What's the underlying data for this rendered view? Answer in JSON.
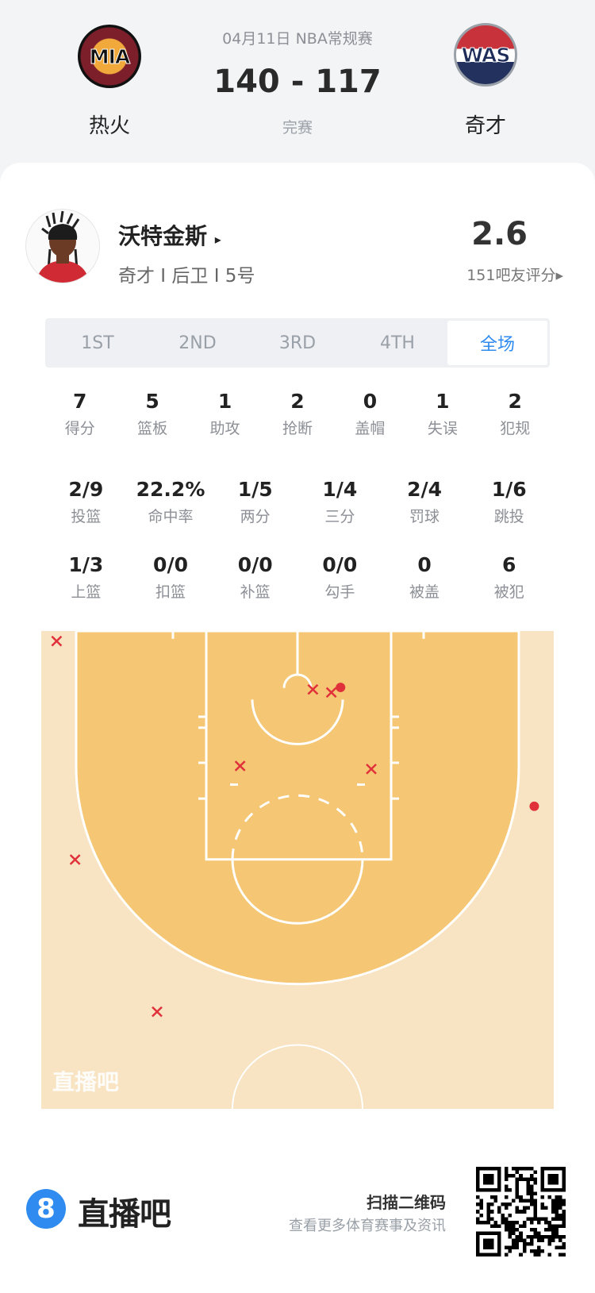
{
  "match": {
    "date_league": "04月11日 NBA常规赛",
    "score": "140 - 117",
    "status": "完赛",
    "home": {
      "abbr": "MIA",
      "name": "热火"
    },
    "away": {
      "abbr": "WAS",
      "name": "奇才"
    }
  },
  "player": {
    "name": "沃特金斯",
    "name_arrow": "▸",
    "info": "奇才 I 后卫 I 5号",
    "rating": "2.6",
    "rating_label": "151吧友评分▸"
  },
  "tabs": [
    {
      "label": "1ST",
      "active": false
    },
    {
      "label": "2ND",
      "active": false
    },
    {
      "label": "3RD",
      "active": false
    },
    {
      "label": "4TH",
      "active": false
    },
    {
      "label": "全场",
      "active": true
    }
  ],
  "stats_main": [
    {
      "value": "7",
      "label": "得分"
    },
    {
      "value": "5",
      "label": "篮板"
    },
    {
      "value": "1",
      "label": "助攻"
    },
    {
      "value": "2",
      "label": "抢断"
    },
    {
      "value": "0",
      "label": "盖帽"
    },
    {
      "value": "1",
      "label": "失误"
    },
    {
      "value": "2",
      "label": "犯规"
    }
  ],
  "stats_shooting": [
    {
      "value": "2/9",
      "label": "投篮"
    },
    {
      "value": "22.2%",
      "label": "命中率"
    },
    {
      "value": "1/5",
      "label": "两分"
    },
    {
      "value": "1/4",
      "label": "三分"
    },
    {
      "value": "2/4",
      "label": "罚球"
    },
    {
      "value": "1/6",
      "label": "跳投"
    }
  ],
  "stats_detail": [
    {
      "value": "1/3",
      "label": "上篮"
    },
    {
      "value": "0/0",
      "label": "扣篮"
    },
    {
      "value": "0/0",
      "label": "补篮"
    },
    {
      "value": "0/0",
      "label": "勾手"
    },
    {
      "value": "0",
      "label": "被盖"
    },
    {
      "value": "6",
      "label": "被犯"
    }
  ],
  "shot_chart": {
    "watermark": "直播吧",
    "units": "feet (x from basket center, y from baseline)",
    "colors": {
      "inner": "#f5c673",
      "outer": "#f8e3c2",
      "shot": "#e0313b",
      "accent": "#2f8bf0"
    },
    "shots": [
      {
        "x": -23.5,
        "y": 1.0,
        "made": false
      },
      {
        "x": 1.5,
        "y": 5.8,
        "made": false
      },
      {
        "x": 3.3,
        "y": 6.1,
        "made": false
      },
      {
        "x": 4.2,
        "y": 5.6,
        "made": true
      },
      {
        "x": -5.6,
        "y": 13.4,
        "made": false
      },
      {
        "x": 7.2,
        "y": 13.7,
        "made": false
      },
      {
        "x": 23.1,
        "y": 17.4,
        "made": true
      },
      {
        "x": -21.7,
        "y": 22.7,
        "made": false
      },
      {
        "x": -13.7,
        "y": 37.8,
        "made": false
      }
    ]
  },
  "footer": {
    "logo_glyph": "8",
    "brand": "直播吧",
    "scan_title": "扫描二维码",
    "scan_sub": "查看更多体育赛事及资讯"
  }
}
